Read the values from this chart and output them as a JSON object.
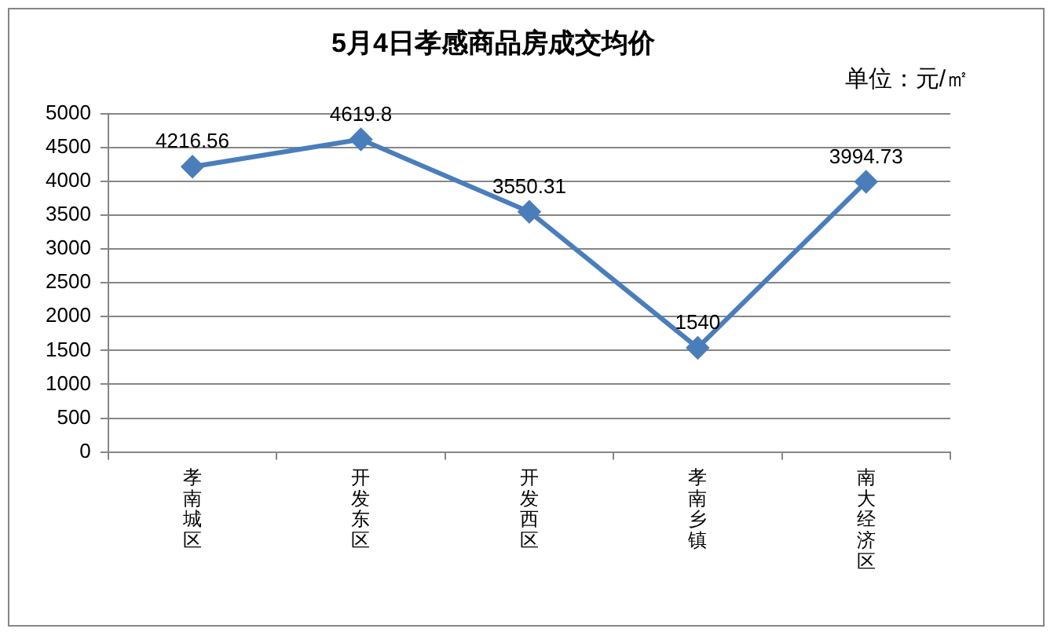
{
  "chart_data": {
    "type": "line",
    "title": "5月4日孝感商品房成交均价",
    "annotations": [
      "单位：元/㎡"
    ],
    "categories": [
      "孝南城区",
      "开发东区",
      "开发西区",
      "孝南乡镇",
      "南大经济区"
    ],
    "series": [
      {
        "color": "#4a7ebb",
        "values": [
          4216.56,
          4619.8,
          3550.31,
          1540,
          3994.73
        ]
      }
    ],
    "ylim": [
      0,
      5000
    ],
    "yticks": [
      0,
      500,
      1000,
      1500,
      2000,
      2500,
      3000,
      3500,
      4000,
      4500,
      5000
    ],
    "grid": "y",
    "legend": false,
    "marker": "diamond",
    "line_style": "solid",
    "data_labels": true
  }
}
